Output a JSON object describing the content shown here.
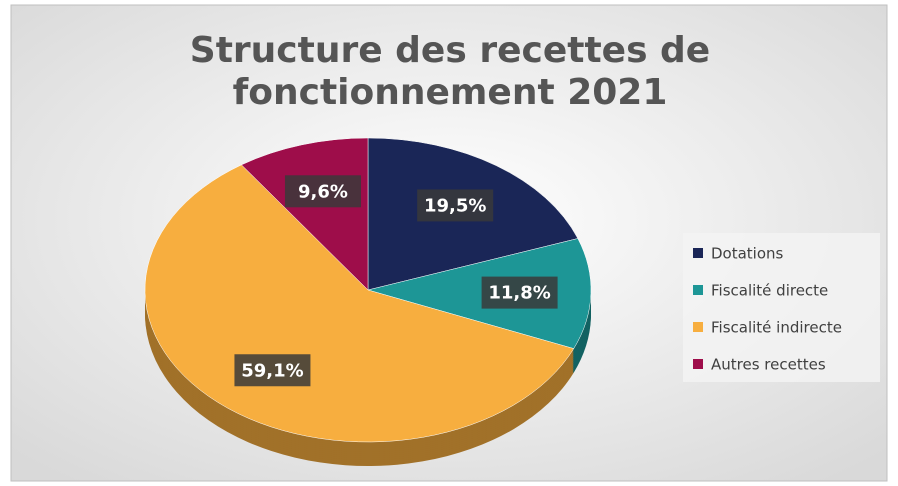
{
  "chart_data": {
    "type": "pie",
    "title": "Structure des recettes de fonctionnement 2021",
    "categories": [
      "Dotations",
      "Fiscalité directe",
      "Fiscalité indirecte",
      "Autres recettes"
    ],
    "values": [
      19.5,
      11.8,
      59.1,
      9.6
    ],
    "value_labels": [
      "19,5%",
      "11,8%",
      "59,1%",
      "9,6%"
    ],
    "colors": [
      "#1a2657",
      "#1d9696",
      "#f7ae3f",
      "#9e0d4a"
    ],
    "legend": "right"
  }
}
